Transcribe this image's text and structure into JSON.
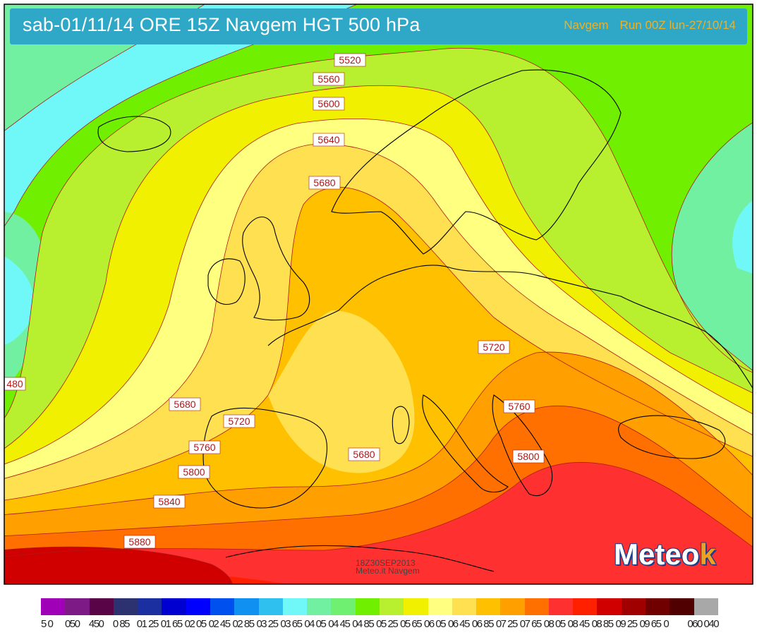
{
  "title": "sab-01/11/14 ORE 15Z  Navgem HGT 500 hPa",
  "run_model": "Navgem",
  "run_info": "Run 00Z lun-27/10/14",
  "contour_labels": [
    "5520",
    "5560",
    "5600",
    "5640",
    "5680",
    "5680",
    "5680",
    "5720",
    "5720",
    "5760",
    "5760",
    "5800",
    "5800",
    "5840",
    "5880",
    "480"
  ],
  "watermark_line1": "18Z30SEP2013",
  "watermark_line2": "Meteo.it Navgem",
  "brand": {
    "text": "Meteo",
    "accent": "k"
  },
  "legend": {
    "colors": [
      "#a000b8",
      "#7e1a86",
      "#5a0448",
      "#2c3170",
      "#1c2fa0",
      "#0000d0",
      "#0000ff",
      "#0050f0",
      "#1090f0",
      "#30c0f0",
      "#70f8f8",
      "#70f0a0",
      "#70f070",
      "#70f000",
      "#b8f030",
      "#f0f000",
      "#ffff80",
      "#ffe050",
      "#ffc000",
      "#ffa000",
      "#ff7000",
      "#ff3030",
      "#ff2000",
      "#d00000",
      "#a00000",
      "#700000",
      "#500000",
      "#a8a8a8"
    ],
    "ticks": [
      "5 0",
      "050",
      "450",
      "0 85",
      "01 25",
      "01 65",
      "02 05",
      "02 45",
      "02 85",
      "03 25",
      "03 65",
      "04 05",
      "04 45",
      "04 85",
      "05 25",
      "05 65",
      "06 05",
      "06 45",
      "06 85",
      "07 25",
      "07 65",
      "08 05",
      "08 45",
      "08 85",
      "09 25",
      "09 65",
      "0",
      "060 040"
    ]
  },
  "colors": {
    "contour_line": "#b01818",
    "coast_line": "#000000",
    "title_bar": "#2fa8c8",
    "run_text": "#f0b020"
  }
}
